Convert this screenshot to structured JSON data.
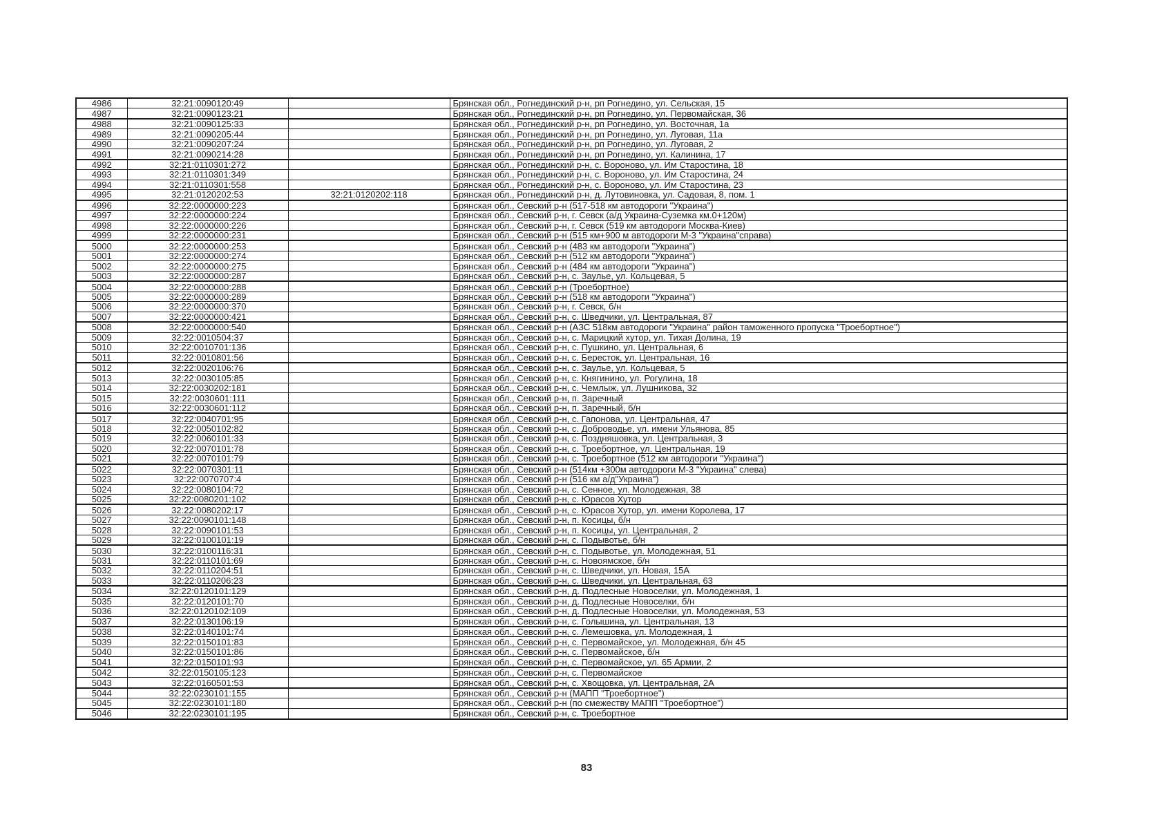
{
  "page": {
    "number": "83"
  },
  "colors": {
    "border": "#1c1c1c",
    "text": "#1f1f1f",
    "background": "#ffffff"
  },
  "table": {
    "columns": [
      "row-number",
      "cadastral-number",
      "secondary-cadastral-number",
      "address"
    ],
    "rows": [
      [
        "4986",
        "32:21:0090120:49",
        "",
        "Брянская обл., Рогнединский р-н, рп Рогнедино, ул. Сельская, 15"
      ],
      [
        "4987",
        "32:21:0090123:21",
        "",
        "Брянская обл., Рогнединский р-н, рп Рогнедино, ул. Первомайская, 36"
      ],
      [
        "4988",
        "32:21:0090125:33",
        "",
        "Брянская обл., Рогнединский р-н, рп Рогнедино, ул. Восточная, 1а"
      ],
      [
        "4989",
        "32:21:0090205:44",
        "",
        "Брянская обл., Рогнединский р-н, рп Рогнедино, ул. Луговая, 11а"
      ],
      [
        "4990",
        "32:21:0090207:24",
        "",
        "Брянская обл., Рогнединский р-н, рп Рогнедино, ул. Луговая, 2"
      ],
      [
        "4991",
        "32:21:0090214:28",
        "",
        "Брянская обл., Рогнединский р-н, рп Рогнедино, ул. Калинина, 17"
      ],
      [
        "4992",
        "32:21:0110301:272",
        "",
        "Брянская обл., Рогнединский р-н, с. Вороново, ул. Им Старостина, 18"
      ],
      [
        "4993",
        "32:21:0110301:349",
        "",
        "Брянская обл., Рогнединский р-н, с. Вороново, ул. Им Старостина, 24"
      ],
      [
        "4994",
        "32:21:0110301:558",
        "",
        "Брянская обл., Рогнединский р-н, с. Вороново, ул. Им Старостина, 23"
      ],
      [
        "4995",
        "32:21:0120202:53",
        "32:21:0120202:118",
        "Брянская обл., Рогнединский р-н, д. Лутовиновка, ул. Садовая, 8, пом. 1"
      ],
      [
        "4996",
        "32:22:0000000:223",
        "",
        "Брянская обл., Севский р-н (517-518 км автодороги \"Украина\")"
      ],
      [
        "4997",
        "32:22:0000000:224",
        "",
        "Брянская обл., Севский р-н, г. Севск (а/д Украина-Суземка км.0+120м)"
      ],
      [
        "4998",
        "32:22:0000000:226",
        "",
        "Брянская обл., Севский р-н, г. Севск (519 км автодороги Москва-Киев)"
      ],
      [
        "4999",
        "32:22:0000000:231",
        "",
        "Брянская обл., Севский р-н (515 км+900 м автодороги М-3 \"Украина\"справа)"
      ],
      [
        "5000",
        "32:22:0000000:253",
        "",
        "Брянская обл., Севский р-н (483 км автодороги \"Украина\")"
      ],
      [
        "5001",
        "32:22:0000000:274",
        "",
        "Брянская обл., Севский р-н (512 км автодороги \"Украина\")"
      ],
      [
        "5002",
        "32:22:0000000:275",
        "",
        "Брянская обл., Севский р-н (484 км автодороги \"Украина\")"
      ],
      [
        "5003",
        "32:22:0000000:287",
        "",
        "Брянская обл., Севский р-н, с. Заулье, ул. Кольцевая, 5"
      ],
      [
        "5004",
        "32:22:0000000:288",
        "",
        "Брянская обл., Севский р-н (Троебортное)"
      ],
      [
        "5005",
        "32:22:0000000:289",
        "",
        "Брянская обл., Севский р-н (518 км автодороги \"Украина\")"
      ],
      [
        "5006",
        "32:22:0000000:370",
        "",
        "Брянская обл., Севский р-н, г. Севск, б/н"
      ],
      [
        "5007",
        "32:22:0000000:421",
        "",
        "Брянская обл., Севский р-н, с. Шведчики, ул. Центральная, 87"
      ],
      [
        "5008",
        "32:22:0000000:540",
        "",
        "Брянская обл., Севский р-н (АЗС 518км автодороги \"Украина\" район таможенного пропуска \"Троебортное\")"
      ],
      [
        "5009",
        "32:22:0010504:37",
        "",
        "Брянская обл., Севский р-н, с. Марицкий хутор, ул. Тихая Долина, 19"
      ],
      [
        "5010",
        "32:22:0010701:136",
        "",
        "Брянская обл., Севский р-н, с. Пушкино, ул. Центральная, 6"
      ],
      [
        "5011",
        "32:22:0010801:56",
        "",
        "Брянская обл., Севский р-н, с. Бересток, ул. Центральная, 16"
      ],
      [
        "5012",
        "32:22:0020106:76",
        "",
        "Брянская обл., Севский р-н, с. Заулье, ул. Кольцевая, 5"
      ],
      [
        "5013",
        "32:22:0030105:85",
        "",
        "Брянская обл., Севский р-н, с. Княгинино, ул. Рогулина, 18"
      ],
      [
        "5014",
        "32:22:0030202:181",
        "",
        "Брянская обл., Севский р-н, с. Чемлыж, ул. Лушникова, 32"
      ],
      [
        "5015",
        "32:22:0030601:111",
        "",
        "Брянская обл., Севский р-н, п. Заречный"
      ],
      [
        "5016",
        "32:22:0030601:112",
        "",
        "Брянская обл., Севский р-н, п. Заречный, б/н"
      ],
      [
        "5017",
        "32:22:0040701:95",
        "",
        "Брянская обл., Севский р-н, с. Гапонова, ул. Центральная, 47"
      ],
      [
        "5018",
        "32:22:0050102:82",
        "",
        "Брянская обл., Севский р-н, с. Доброводье, ул. имени Ульянова, 85"
      ],
      [
        "5019",
        "32:22:0060101:33",
        "",
        "Брянская обл., Севский р-н, с. Поздняшовка, ул. Центральная, 3"
      ],
      [
        "5020",
        "32:22:0070101:78",
        "",
        "Брянская обл., Севский р-н, с. Троебортное, ул. Центральная, 19"
      ],
      [
        "5021",
        "32:22:0070101:79",
        "",
        "Брянская обл., Севский р-н, с. Троебортное (512 км автодороги \"Украина\")"
      ],
      [
        "5022",
        "32:22:0070301:11",
        "",
        "Брянская обл., Севский р-н (514км +300м автодороги М-3 \"Украина\" слева)"
      ],
      [
        "5023",
        "32:22:0070707:4",
        "",
        "Брянская обл., Севский р-н (516 км а/д\"Украина\")"
      ],
      [
        "5024",
        "32:22:0080104:72",
        "",
        "Брянская обл., Севский р-н, с. Сенное, ул. Молодежная, 38"
      ],
      [
        "5025",
        "32:22:0080201:102",
        "",
        "Брянская обл., Севский р-н, с. Юрасов Хутор"
      ],
      [
        "5026",
        "32:22:0080202:17",
        "",
        "Брянская обл., Севский р-н, с. Юрасов Хутор, ул. имени Королева, 17"
      ],
      [
        "5027",
        "32:22:0090101:148",
        "",
        "Брянская обл., Севский р-н, п. Косицы, б/н"
      ],
      [
        "5028",
        "32:22:0090101:53",
        "",
        "Брянская обл., Севский р-н, п. Косицы, ул. Центральная, 2"
      ],
      [
        "5029",
        "32:22:0100101:19",
        "",
        "Брянская обл., Севский р-н, с. Подывотье, б/н"
      ],
      [
        "5030",
        "32:22:0100116:31",
        "",
        "Брянская обл., Севский р-н, с. Подывотье, ул. Молодежная, 51"
      ],
      [
        "5031",
        "32:22:0110101:69",
        "",
        "Брянская обл., Севский р-н, с. Новоямское, б/н"
      ],
      [
        "5032",
        "32:22:0110204:51",
        "",
        "Брянская обл., Севский р-н, с. Шведчики, ул. Новая, 15А"
      ],
      [
        "5033",
        "32:22:0110206:23",
        "",
        "Брянская обл., Севский р-н, с. Шведчики, ул. Центральная, 63"
      ],
      [
        "5034",
        "32:22:0120101:129",
        "",
        "Брянская обл., Севский р-н, д. Подлесные Новоселки, ул. Молодежная, 1"
      ],
      [
        "5035",
        "32:22:0120101:70",
        "",
        "Брянская обл., Севский р-н, д. Подлесные Новоселки, б/н"
      ],
      [
        "5036",
        "32:22:0120102:109",
        "",
        "Брянская обл., Севский р-н, д. Подлесные Новоселки, ул. Молодежная, 53"
      ],
      [
        "5037",
        "32:22:0130106:19",
        "",
        "Брянская обл., Севский р-н, с. Голышина, ул. Центральная, 13"
      ],
      [
        "5038",
        "32:22:0140101:74",
        "",
        "Брянская обл., Севский р-н, с. Лемешовка, ул. Молодежная, 1"
      ],
      [
        "5039",
        "32:22:0150101:83",
        "",
        "Брянская обл., Севский р-н, с. Первомайское, ул. Молодежная, б/н 45"
      ],
      [
        "5040",
        "32:22:0150101:86",
        "",
        "Брянская обл., Севский р-н, с. Первомайское, б/н"
      ],
      [
        "5041",
        "32:22:0150101:93",
        "",
        "Брянская обл., Севский р-н, с. Первомайское, ул. 65 Армии, 2"
      ],
      [
        "5042",
        "32:22:0150105:123",
        "",
        "Брянская обл., Севский р-н, с. Первомайское"
      ],
      [
        "5043",
        "32:22:0160501:53",
        "",
        "Брянская обл., Севский р-н, с. Хвощовка, ул. Центральная, 2А"
      ],
      [
        "5044",
        "32:22:0230101:155",
        "",
        "Брянская обл., Севский р-н (МАПП \"Троебортное\")"
      ],
      [
        "5045",
        "32:22:0230101:180",
        "",
        "Брянская обл., Севский р-н (по смежеству МАПП \"Троебортное\")"
      ],
      [
        "5046",
        "32:22:0230101:195",
        "",
        "Брянская обл., Севский р-н, с. Троебортное"
      ]
    ]
  }
}
